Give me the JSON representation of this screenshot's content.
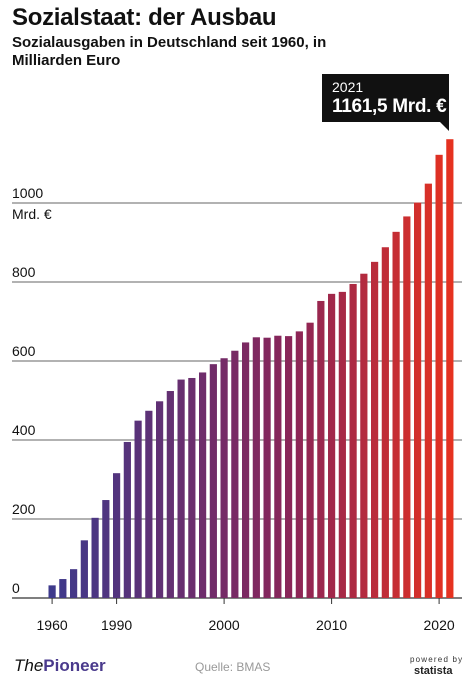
{
  "header": {
    "title": "Sozialstaat: der Ausbau",
    "subtitle": "Sozialausgaben in Deutschland seit 1960, in Milliarden Euro"
  },
  "callout": {
    "year": "2021",
    "value": "1161,5 Mrd. €"
  },
  "footer": {
    "logo_prefix": "The",
    "logo_name": "Pioneer",
    "source": "Quelle: BMAS",
    "powered": "powered by",
    "statista": "statista"
  },
  "colors": {
    "bar_start": "#3d3a8c",
    "bar_mid": "#8a2558",
    "bar_end": "#e8321e",
    "grid": "#333333"
  },
  "chart_data": {
    "type": "bar",
    "title": "Sozialstaat: der Ausbau",
    "subtitle": "Sozialausgaben in Deutschland seit 1960, in Milliarden Euro",
    "ylabel": "Mrd. €",
    "ylim": [
      0,
      1200
    ],
    "yticks": [
      0,
      200,
      400,
      600,
      800,
      1000
    ],
    "ytick_labels": [
      "0",
      "200",
      "400",
      "600",
      "800",
      "1000"
    ],
    "xtick_labels": [
      "1960",
      "1990",
      "2000",
      "2010",
      "2020"
    ],
    "grid": true,
    "categories": [
      "1960",
      "1965",
      "1970",
      "1975",
      "1980",
      "1985",
      "1990",
      "1991",
      "1992",
      "1993",
      "1994",
      "1995",
      "1996",
      "1997",
      "1998",
      "1999",
      "2000",
      "2001",
      "2002",
      "2003",
      "2004",
      "2005",
      "2006",
      "2007",
      "2008",
      "2009",
      "2010",
      "2011",
      "2012",
      "2013",
      "2014",
      "2015",
      "2016",
      "2017",
      "2018",
      "2019",
      "2020",
      "2021"
    ],
    "values": [
      32,
      48,
      73,
      146,
      203,
      248,
      316,
      395,
      449,
      474,
      498,
      524,
      553,
      557,
      571,
      592,
      607,
      626,
      647,
      660,
      659,
      664,
      663,
      675,
      697,
      752,
      770,
      775,
      795,
      821,
      851,
      888,
      927,
      966,
      1001,
      1049,
      1122,
      1161.5
    ]
  }
}
